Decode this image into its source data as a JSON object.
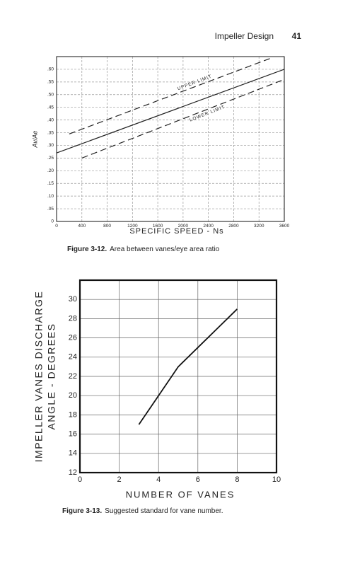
{
  "header": {
    "title": "Impeller Design",
    "page": "41"
  },
  "chart_data": [
    {
      "type": "line",
      "figure": "Figure 3-12.",
      "caption": "Area between vanes/eye area ratio",
      "xlabel": "SPECIFIC SPEED - Ns",
      "ylabel": "Av/Ae",
      "xlim": [
        0,
        3600
      ],
      "ylim": [
        0,
        0.65
      ],
      "xticks": [
        0,
        400,
        800,
        1200,
        1600,
        2000,
        2400,
        2800,
        3200,
        3600
      ],
      "yticks": [
        0,
        {
          "value": 0.05,
          "label": ".05"
        },
        {
          "value": 0.1,
          "label": ".10"
        },
        {
          "value": 0.15,
          "label": ".15"
        },
        {
          "value": 0.2,
          "label": ".20"
        },
        {
          "value": 0.25,
          "label": ".25"
        },
        {
          "value": 0.3,
          "label": ".30"
        },
        {
          "value": 0.35,
          "label": ".35"
        },
        {
          "value": 0.4,
          "label": ".40"
        },
        {
          "value": 0.45,
          "label": ".45"
        },
        {
          "value": 0.5,
          "label": ".50"
        },
        {
          "value": 0.55,
          "label": ".55"
        },
        {
          "value": 0.6,
          "label": ".60"
        }
      ],
      "grid": true,
      "series": [
        {
          "name": "UPPER LIMIT",
          "style": "dashed",
          "color": "#222222",
          "x": [
            200,
            3400
          ],
          "values": [
            0.345,
            0.645
          ]
        },
        {
          "style": "solid",
          "color": "#222222",
          "x": [
            0,
            3600
          ],
          "values": [
            0.27,
            0.6
          ]
        },
        {
          "name": "LOWER LIMIT",
          "style": "dashed",
          "color": "#222222",
          "x": [
            400,
            3600
          ],
          "values": [
            0.25,
            0.56
          ]
        }
      ]
    },
    {
      "type": "line",
      "figure": "Figure 3-13.",
      "caption": "Suggested standard for vane number.",
      "xlabel": "NUMBER OF VANES",
      "ylabel": [
        "IMPELLER VANES DISCHARGE",
        "ANGLE - DEGREES"
      ],
      "xlim": [
        0,
        10
      ],
      "ylim": [
        12,
        32
      ],
      "xticks": [
        0,
        2,
        4,
        6,
        8,
        10
      ],
      "yticks": [
        12,
        14,
        16,
        18,
        20,
        22,
        24,
        26,
        28,
        30
      ],
      "grid": true,
      "series": [
        {
          "style": "solid",
          "color": "#111111",
          "x": [
            3,
            4,
            5,
            6,
            7,
            8
          ],
          "values": [
            17,
            20,
            23,
            25,
            27,
            29
          ]
        }
      ]
    }
  ]
}
